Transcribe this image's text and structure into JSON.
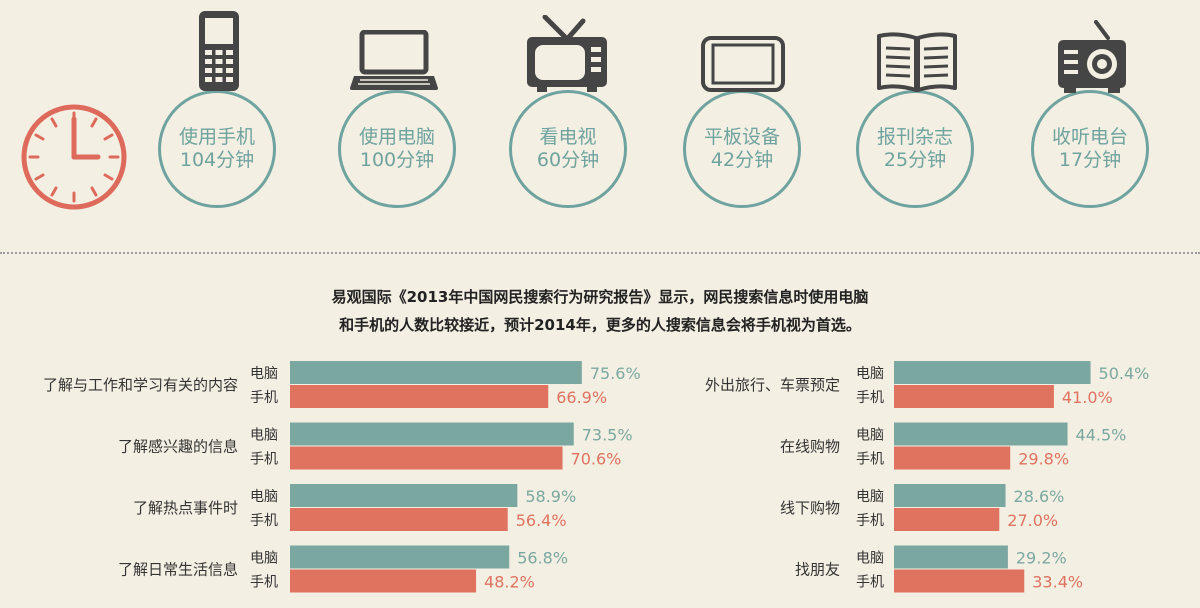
{
  "colors": {
    "background": "#f4efe3",
    "teal": "#7aa8a1",
    "red": "#e07260",
    "clock": "#dd6a5b",
    "icon": "#454545",
    "divider": "#9a9a9a"
  },
  "devices": [
    {
      "label": "使用手机",
      "minutes": "104分钟",
      "icon": "mobile-phone-icon"
    },
    {
      "label": "使用电脑",
      "minutes": "100分钟",
      "icon": "laptop-icon"
    },
    {
      "label": "看电视",
      "minutes": "60分钟",
      "icon": "tv-icon"
    },
    {
      "label": "平板设备",
      "minutes": "42分钟",
      "icon": "tablet-icon"
    },
    {
      "label": "报刊杂志",
      "minutes": "25分钟",
      "icon": "book-icon"
    },
    {
      "label": "收听电台",
      "minutes": "17分钟",
      "icon": "radio-icon"
    }
  ],
  "intro": {
    "line1": "易观国际《2013年中国网民搜索行为研究报告》显示，网民搜索信息时使用电脑",
    "line2": "和手机的人数比较接近，预计2014年，更多的人搜索信息会将手机视为首选。"
  },
  "chart_data": [
    {
      "type": "bar",
      "orientation": "horizontal",
      "categories": [
        "了解与工作和学习有关的内容",
        "了解感兴趣的信息",
        "了解热点事件时",
        "了解日常生活信息"
      ],
      "series": [
        {
          "name": "电脑",
          "values": [
            75.6,
            73.5,
            58.9,
            56.8
          ],
          "labels": [
            "75.6%",
            "73.5%",
            "58.9%",
            "56.8%"
          ],
          "color": "#7aa8a1"
        },
        {
          "name": "手机",
          "values": [
            66.9,
            70.6,
            56.4,
            48.2
          ],
          "labels": [
            "66.9%",
            "70.6%",
            "56.4%",
            "48.2%"
          ],
          "color": "#e07260"
        }
      ]
    },
    {
      "type": "bar",
      "orientation": "horizontal",
      "categories": [
        "外出旅行、车票预定",
        "在线购物",
        "线下购物",
        "找朋友"
      ],
      "series": [
        {
          "name": "电脑",
          "values": [
            50.4,
            44.5,
            28.6,
            29.2
          ],
          "labels": [
            "50.4%",
            "44.5%",
            "28.6%",
            "29.2%"
          ],
          "color": "#7aa8a1"
        },
        {
          "name": "手机",
          "values": [
            41.0,
            29.8,
            27.0,
            33.4
          ],
          "labels": [
            "41.0%",
            "29.8%",
            "27.0%",
            "33.4%"
          ],
          "color": "#e07260"
        }
      ]
    }
  ]
}
